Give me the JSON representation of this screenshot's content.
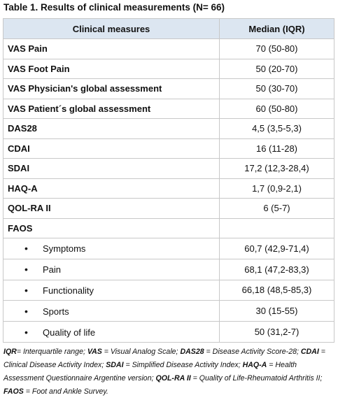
{
  "table": {
    "title": "Table 1. Results of clinical measurements (N= 66)",
    "header": [
      "Clinical measures",
      "Median (IQR)"
    ],
    "rows": [
      [
        "VAS Pain",
        "70 (50-80)"
      ],
      [
        "VAS Foot Pain",
        "50 (20-70)"
      ],
      [
        "VAS Physician's global assessment",
        "50 (30-70)"
      ],
      [
        "VAS Patient´s global assessment",
        "60 (50-80)"
      ],
      [
        "DAS28",
        "4,5 (3,5-5,3)"
      ],
      [
        "CDAI",
        "16 (11-28)"
      ],
      [
        "SDAI",
        "17,2 (12,3-28,4)"
      ],
      [
        "HAQ-A",
        "1,7 (0,9-2,1)"
      ],
      [
        "QOL-RA II",
        "6 (5-7)"
      ]
    ],
    "group": {
      "label": "FAOS",
      "items": [
        [
          "Symptoms",
          "60,7 (42,9-71,4)"
        ],
        [
          "Pain",
          "68,1 (47,2-83,3)"
        ],
        [
          "Functionality",
          "66,18 (48,5-85,3)"
        ],
        [
          "Sports",
          "30 (15-55)"
        ],
        [
          "Quality of life",
          "50 (31,2-7)"
        ]
      ]
    }
  },
  "footnote": [
    {
      "abbr": "IQR",
      "def": "= Interquartile range; "
    },
    {
      "abbr": "VAS",
      "def": " = Visual Analog Scale; "
    },
    {
      "abbr": "DAS28",
      "def": " = Disease Activity Score-28; "
    },
    {
      "abbr": "CDAI",
      "def": " = Clinical Disease Activity Index; "
    },
    {
      "abbr": "SDAI",
      "def": " = Simplified Disease Activity Index; "
    },
    {
      "abbr": "HAQ-A",
      "def": " = Health Assessment Questionnaire Argentine version; "
    },
    {
      "abbr": "QOL-RA II",
      "def": " = Quality of Life-Rheumatoid Arthritis II; "
    },
    {
      "abbr": "FAOS",
      "def": " = Foot and Ankle Survey."
    }
  ]
}
